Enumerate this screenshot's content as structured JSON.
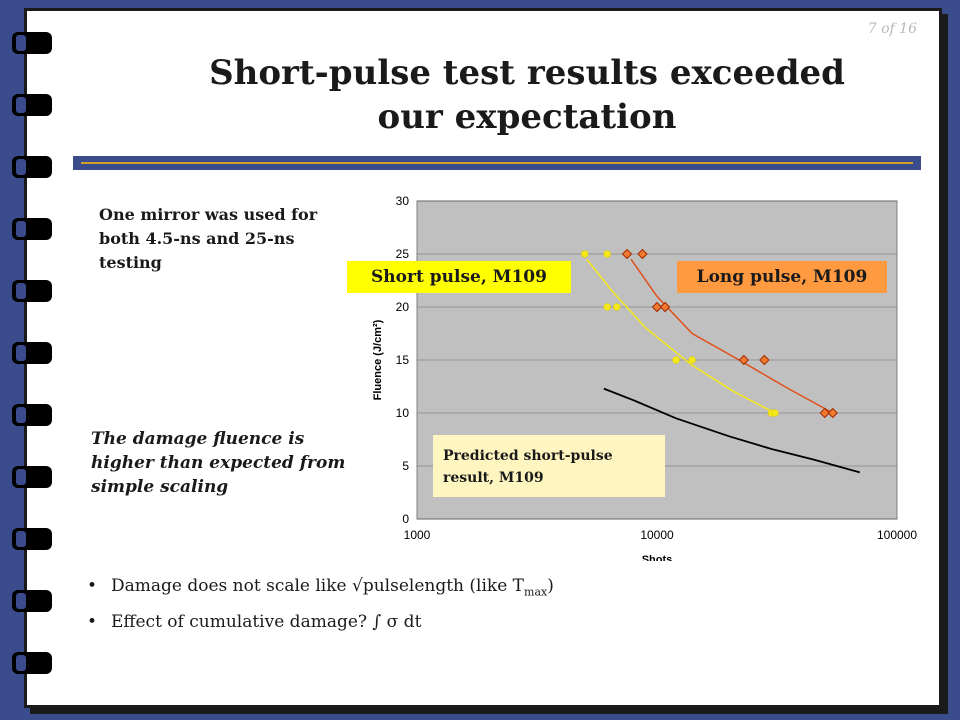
{
  "slide": {
    "page_number": "7 of 16",
    "title_line1": "Short-pulse test results exceeded",
    "title_line2": "our expectation",
    "note_mirror": "One mirror was used for both 4.5-ns and 25-ns testing",
    "note_damage": "The damage fluence is higher than expected from simple scaling",
    "bullet1": "Damage does not scale like √pulselength (like T",
    "bullet1_sub": "max",
    "bullet1_end": ")",
    "bullet2": "Effect of cumulative damage?   ∫ σ dt"
  },
  "labels": {
    "short": "Short pulse, M109",
    "long": "Long pulse, M109",
    "predicted_line1": "Predicted short-pulse",
    "predicted_line2": "result, M109"
  },
  "colors": {
    "short": "#f5e81a",
    "long": "#e0501a",
    "predicted": "#000000",
    "plot_bg": "#c0c0c0"
  },
  "chart_data": {
    "type": "scatter",
    "xscale": "log",
    "xlim": [
      1000,
      100000
    ],
    "ylim": [
      0,
      30
    ],
    "xticks": [
      "1000",
      "10000",
      "100000"
    ],
    "yticks": [
      "0",
      "5",
      "10",
      "15",
      "20",
      "25",
      "30"
    ],
    "xlabel": "Shots",
    "ylabel": "Fluence (J/cm²)",
    "grid": true,
    "series": [
      {
        "name": "Short pulse, M109",
        "points": [
          [
            5000,
            25
          ],
          [
            6200,
            25
          ],
          [
            6200,
            20
          ],
          [
            6800,
            20
          ],
          [
            12000,
            15
          ],
          [
            14000,
            15
          ],
          [
            30000,
            10
          ],
          [
            31000,
            10
          ]
        ],
        "fit": [
          [
            5100,
            24.5
          ],
          [
            6500,
            21.5
          ],
          [
            9000,
            18
          ],
          [
            14000,
            14.5
          ],
          [
            21000,
            12
          ],
          [
            31000,
            10
          ]
        ]
      },
      {
        "name": "Long pulse, M109",
        "points": [
          [
            7500,
            25
          ],
          [
            8700,
            25
          ],
          [
            10000,
            20
          ],
          [
            10800,
            20
          ],
          [
            23000,
            15
          ],
          [
            28000,
            15
          ],
          [
            50000,
            10
          ],
          [
            54000,
            10
          ]
        ],
        "fit": [
          [
            7800,
            24.5
          ],
          [
            10000,
            21
          ],
          [
            14000,
            17.5
          ],
          [
            22000,
            15
          ],
          [
            34000,
            12.5
          ],
          [
            54000,
            10
          ]
        ]
      },
      {
        "name": "Predicted short-pulse result, M109",
        "line": [
          [
            6000,
            12.3
          ],
          [
            8000,
            11.2
          ],
          [
            12000,
            9.5
          ],
          [
            20000,
            7.8
          ],
          [
            30000,
            6.6
          ],
          [
            45000,
            5.6
          ],
          [
            70000,
            4.4
          ]
        ]
      }
    ]
  }
}
